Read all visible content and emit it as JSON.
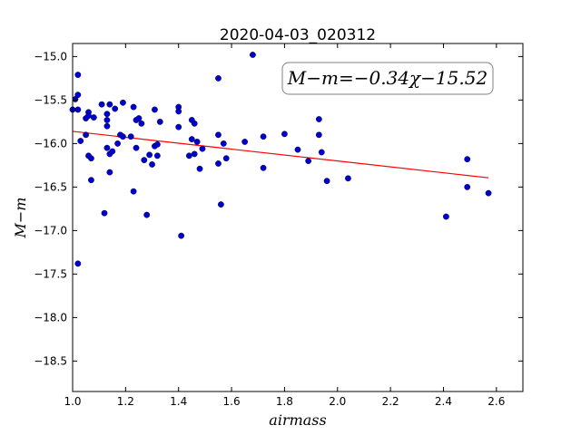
{
  "chart_data": {
    "type": "scatter",
    "title": "2020-04-03_020312",
    "xlabel": "airmass",
    "ylabel": "M−m",
    "annotation": "M−m=−0.34χ−15.52",
    "xlim": [
      1.0,
      2.7
    ],
    "ylim": [
      -18.85,
      -14.85
    ],
    "y_inverted": true,
    "grid": false,
    "x_ticks": [
      1.0,
      1.2,
      1.4,
      1.6,
      1.8,
      2.0,
      2.2,
      2.4,
      2.6
    ],
    "x_tick_labels": [
      "1.0",
      "1.2",
      "1.4",
      "1.6",
      "1.8",
      "2.0",
      "2.2",
      "2.4",
      "2.6"
    ],
    "y_ticks": [
      -15.0,
      -15.5,
      -16.0,
      -16.5,
      -17.0,
      -17.5,
      -18.0,
      -18.5
    ],
    "y_tick_labels": [
      "−15.0",
      "−15.5",
      "−16.0",
      "−16.5",
      "−17.0",
      "−17.5",
      "−18.0",
      "−18.5"
    ],
    "points": [
      [
        1.0,
        -15.61
      ],
      [
        1.01,
        -15.49
      ],
      [
        1.02,
        -15.44
      ],
      [
        1.02,
        -15.21
      ],
      [
        1.02,
        -15.61
      ],
      [
        1.03,
        -15.97
      ],
      [
        1.02,
        -17.38
      ],
      [
        1.05,
        -15.71
      ],
      [
        1.05,
        -15.9
      ],
      [
        1.06,
        -15.64
      ],
      [
        1.06,
        -15.68
      ],
      [
        1.06,
        -16.14
      ],
      [
        1.07,
        -16.17
      ],
      [
        1.07,
        -16.42
      ],
      [
        1.08,
        -15.7
      ],
      [
        1.11,
        -15.55
      ],
      [
        1.12,
        -16.8
      ],
      [
        1.13,
        -15.66
      ],
      [
        1.13,
        -15.73
      ],
      [
        1.13,
        -15.8
      ],
      [
        1.13,
        -16.05
      ],
      [
        1.14,
        -15.55
      ],
      [
        1.14,
        -16.12
      ],
      [
        1.14,
        -16.33
      ],
      [
        1.15,
        -16.09
      ],
      [
        1.16,
        -15.6
      ],
      [
        1.17,
        -16.0
      ],
      [
        1.18,
        -15.9
      ],
      [
        1.19,
        -15.53
      ],
      [
        1.19,
        -15.92
      ],
      [
        1.22,
        -15.92
      ],
      [
        1.23,
        -15.58
      ],
      [
        1.23,
        -16.55
      ],
      [
        1.24,
        -15.73
      ],
      [
        1.24,
        -16.05
      ],
      [
        1.25,
        -15.71
      ],
      [
        1.26,
        -15.77
      ],
      [
        1.27,
        -16.19
      ],
      [
        1.28,
        -16.82
      ],
      [
        1.29,
        -16.13
      ],
      [
        1.3,
        -16.24
      ],
      [
        1.31,
        -15.61
      ],
      [
        1.31,
        -16.03
      ],
      [
        1.32,
        -16.01
      ],
      [
        1.32,
        -16.14
      ],
      [
        1.33,
        -15.75
      ],
      [
        1.4,
        -15.58
      ],
      [
        1.4,
        -15.63
      ],
      [
        1.4,
        -15.81
      ],
      [
        1.41,
        -17.06
      ],
      [
        1.44,
        -16.14
      ],
      [
        1.45,
        -15.95
      ],
      [
        1.45,
        -15.73
      ],
      [
        1.46,
        -15.77
      ],
      [
        1.46,
        -16.12
      ],
      [
        1.47,
        -15.98
      ],
      [
        1.48,
        -16.29
      ],
      [
        1.49,
        -16.06
      ],
      [
        1.55,
        -15.25
      ],
      [
        1.55,
        -15.9
      ],
      [
        1.55,
        -16.23
      ],
      [
        1.56,
        -16.7
      ],
      [
        1.57,
        -16.0
      ],
      [
        1.58,
        -16.17
      ],
      [
        1.65,
        -15.98
      ],
      [
        1.68,
        -14.98
      ],
      [
        1.72,
        -15.92
      ],
      [
        1.72,
        -16.28
      ],
      [
        1.8,
        -15.89
      ],
      [
        1.85,
        -16.07
      ],
      [
        1.89,
        -16.2
      ],
      [
        1.93,
        -15.72
      ],
      [
        1.93,
        -15.9
      ],
      [
        1.94,
        -16.1
      ],
      [
        1.96,
        -16.43
      ],
      [
        2.04,
        -16.4
      ],
      [
        2.41,
        -16.84
      ],
      [
        2.49,
        -16.18
      ],
      [
        2.49,
        -16.5
      ],
      [
        2.57,
        -16.57
      ]
    ],
    "fit_line": {
      "slope": -0.34,
      "intercept": -15.52,
      "x_range": [
        1.0,
        2.57
      ]
    },
    "colors": {
      "points": "#0000cc",
      "fit_line": "#ff0000",
      "axes": "#000000"
    }
  }
}
